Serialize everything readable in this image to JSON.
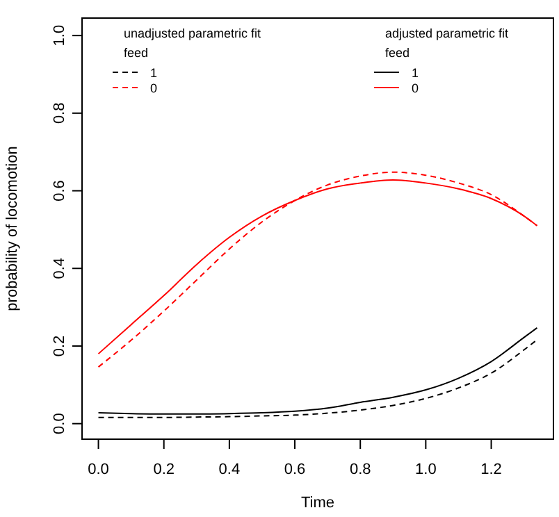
{
  "chart_data": {
    "type": "line",
    "xlabel": "Time",
    "ylabel": "probability of locomotion",
    "x": [
      0,
      0.1,
      0.2,
      0.3,
      0.4,
      0.5,
      0.6,
      0.7,
      0.8,
      0.9,
      1.0,
      1.1,
      1.2,
      1.3,
      1.34
    ],
    "xlim": [
      -0.05,
      1.39
    ],
    "ylim": [
      -0.04,
      1.045
    ],
    "xticks": [
      {
        "value": 0,
        "label": "0.0"
      },
      0.2,
      0.4,
      0.6,
      0.8,
      {
        "value": 1,
        "label": "1.0"
      },
      1.2
    ],
    "yticks": [
      {
        "value": 0,
        "label": "0.0"
      },
      0.2,
      0.4,
      0.6,
      0.8,
      {
        "value": 1,
        "label": "1.0"
      }
    ],
    "grid": false,
    "legend": "top",
    "annotations": [
      "unadjusted parametric fit",
      "feed",
      "adjusted parametric fit",
      "feed"
    ],
    "series": [
      {
        "name": "1",
        "color": "#000000",
        "line_style": "dashed",
        "values": [
          0.016,
          0.016,
          0.016,
          0.017,
          0.018,
          0.02,
          0.022,
          0.027,
          0.035,
          0.047,
          0.065,
          0.092,
          0.13,
          0.19,
          0.216
        ]
      },
      {
        "name": "0",
        "color": "#ff0000",
        "line_style": "dashed",
        "values": [
          0.146,
          0.215,
          0.29,
          0.37,
          0.45,
          0.52,
          0.575,
          0.615,
          0.638,
          0.648,
          0.64,
          0.62,
          0.59,
          0.535,
          0.51
        ]
      },
      {
        "name": "1",
        "color": "#000000",
        "line_style": "solid",
        "values": [
          0.028,
          0.026,
          0.025,
          0.025,
          0.026,
          0.028,
          0.032,
          0.04,
          0.055,
          0.068,
          0.087,
          0.117,
          0.16,
          0.222,
          0.247
        ]
      },
      {
        "name": "0",
        "color": "#ff0000",
        "line_style": "solid",
        "values": [
          0.18,
          0.255,
          0.33,
          0.41,
          0.48,
          0.535,
          0.575,
          0.605,
          0.62,
          0.628,
          0.62,
          0.605,
          0.58,
          0.535,
          0.51
        ]
      }
    ]
  }
}
